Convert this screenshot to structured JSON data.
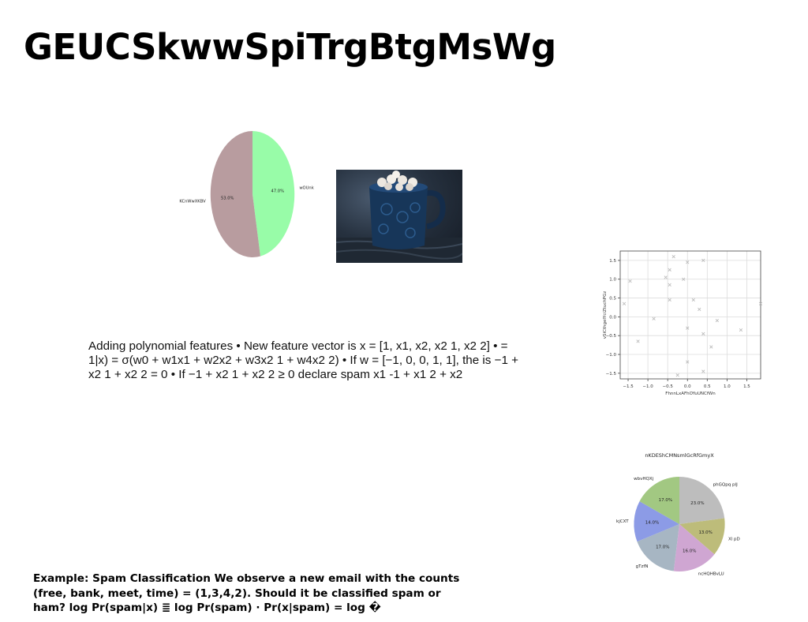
{
  "page": {
    "title": "GEUCSkwwSpiTrgBtgMsWg",
    "paragraph": "Adding polynomial features • New feature vector is x = [1, x1, x2, x2 1, x2 2] • = 1|x) = σ(w0 + w1x1 + w2x2 + w3x2 1 + w4x2 2) • If w = [−1, 0, 0, 1, 1], the is −1 + x2 1 + x2 2 = 0 • If −1 + x2 1 + x2 2 ≥ 0 declare spam x1 -1 + x1 2 + x2",
    "example": "Example: Spam Classification We observe a new email with the counts (free, bank, meet, time) = (1,3,4,2). Should it be classified spam or ham? log Pr(spam|x) ≣ log Pr(spam) · Pr(x|spam) = log �",
    "photo": "mug-photo"
  },
  "chart_data": [
    {
      "type": "pie",
      "title": "",
      "labels": [
        "wOUnk",
        "KCnWwXKBV"
      ],
      "values": [
        47.0,
        53.0
      ],
      "value_labels": [
        "47.0%",
        "53.0%"
      ],
      "colors": [
        "#98fca8",
        "#b89c9f"
      ]
    },
    {
      "type": "scatter",
      "title": "",
      "xlabel": "FhnnLxAFhOYuUNCfWn",
      "ylabel": "vSiCthgelYciZtuchPGz",
      "xlim": [
        -1.7,
        1.85
      ],
      "ylim": [
        -1.65,
        1.75
      ],
      "xticks": [
        -1.5,
        -1.0,
        -0.5,
        0.0,
        0.5,
        1.0,
        1.5
      ],
      "xtick_labels": [
        "−1.5",
        "−1.0",
        "−0.5",
        "0.0",
        "0.5",
        "1.0",
        "1.5"
      ],
      "yticks": [
        -1.5,
        -1.0,
        -0.5,
        0.0,
        0.5,
        1.0,
        1.5
      ],
      "ytick_labels": [
        "−1.5",
        "−1.0",
        "−0.5",
        "0.0",
        "0.5",
        "1.0",
        "1.5"
      ],
      "grid": true,
      "marker": "x",
      "color": "#bbbbbb",
      "x": [
        -0.35,
        -1.45,
        0.0,
        0.4,
        -0.55,
        -0.45,
        -0.45,
        -0.1,
        -1.6,
        0.15,
        0.3,
        -0.45,
        -0.85,
        0.75,
        1.85,
        1.35,
        -1.25,
        0.4,
        0.0,
        0.6,
        -0.25,
        0.0,
        0.4
      ],
      "y": [
        1.6,
        0.95,
        1.45,
        1.5,
        1.05,
        1.25,
        0.85,
        1.0,
        0.35,
        0.45,
        0.2,
        0.45,
        -0.05,
        -0.1,
        0.35,
        -0.35,
        -0.65,
        -0.45,
        -0.3,
        -0.8,
        -1.55,
        -1.2,
        -1.45
      ]
    },
    {
      "type": "pie",
      "title": "nKDEShCMNsmlGcRfGmyX",
      "labels": [
        "phGQpq pIJ",
        "Xl pD",
        "ncHQHBvLU",
        "gTzfN",
        "kjCXT",
        "wbvHQXj"
      ],
      "values": [
        23.0,
        13.0,
        16.0,
        17.0,
        14.0,
        17.0
      ],
      "value_labels": [
        "23.0%",
        "13.0%",
        "16.0%",
        "17.0%",
        "14.0%",
        "17.0%"
      ],
      "colors": [
        "#bdbdbd",
        "#bdbc7a",
        "#cfa6d2",
        "#a7b6c3",
        "#8c9be6",
        "#a2c882"
      ]
    }
  ]
}
